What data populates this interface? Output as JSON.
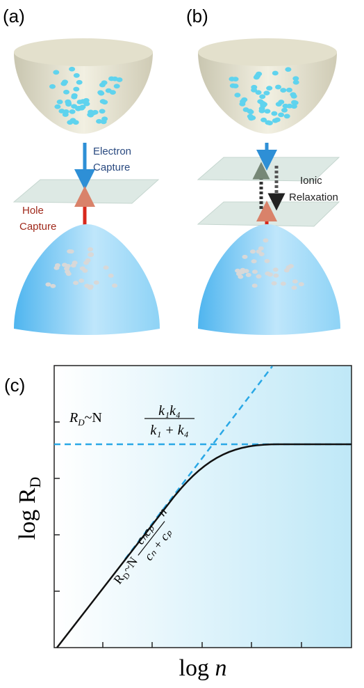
{
  "panels": [
    {
      "label": "(a)",
      "arrows": [
        {
          "label_lines": [
            "Electron",
            "Capture"
          ]
        },
        {
          "label_lines": [
            "Hole",
            "Capture"
          ]
        }
      ]
    },
    {
      "label": "(b)",
      "arrows": [
        {
          "label_lines": [
            "Ionic",
            "Relaxation"
          ]
        }
      ]
    }
  ],
  "plot": {
    "label": "(c)",
    "y_axis": {
      "label": "log R",
      "subscript": "D"
    },
    "x_axis": {
      "label": "log ",
      "variable": "n"
    },
    "plateau_equation": {
      "symbol": "R",
      "subscript": "D",
      "relation": "~N",
      "numerator": "k₁k₄",
      "denominator": "k₁ + k₄"
    },
    "linear_equation": {
      "symbol": "R",
      "subscript": "D",
      "relation": "~N",
      "numerator": "cₙcₚ",
      "denominator": "cₙ + cₚ",
      "factor": "n"
    }
  }
}
